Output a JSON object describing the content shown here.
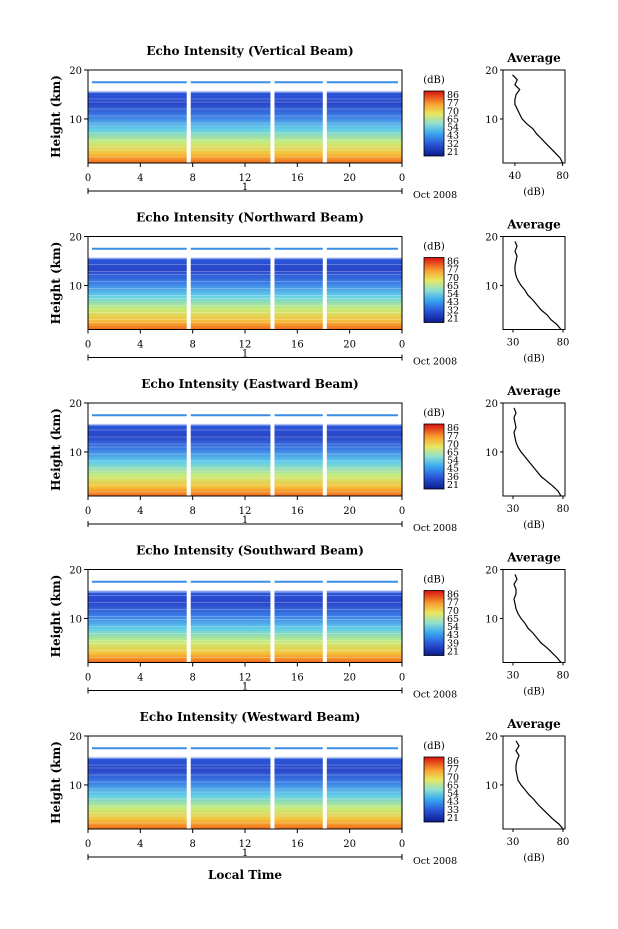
{
  "figure": {
    "xlabel": "Local Time"
  },
  "chart_data": [
    {
      "type": "heatmap",
      "title": "Echo Intensity (Vertical Beam)",
      "ylabel": "Height (km)",
      "x_ticks": [
        "0",
        "4",
        "8",
        "12",
        "16",
        "20",
        "0"
      ],
      "y_ticks": [
        "20",
        "10"
      ],
      "date_label": "Oct 2008",
      "date_marker": "1",
      "colorbar": {
        "unit": "(dB)",
        "labels": [
          "86",
          "77",
          "70",
          "65",
          "54",
          "43",
          "32",
          "21"
        ]
      },
      "average": {
        "title": "Average",
        "xlabel": "(dB)",
        "x_ticks": [
          "40",
          "80"
        ],
        "y_ticks": [
          "20",
          "10"
        ],
        "profile": [
          [
            80,
            1
          ],
          [
            78,
            2
          ],
          [
            74,
            3
          ],
          [
            70,
            4
          ],
          [
            66,
            5
          ],
          [
            62,
            6
          ],
          [
            58,
            7
          ],
          [
            55,
            8
          ],
          [
            50,
            9
          ],
          [
            46,
            10
          ],
          [
            44,
            11
          ],
          [
            42,
            12
          ],
          [
            40,
            13
          ],
          [
            40,
            14
          ],
          [
            41,
            15
          ],
          [
            44,
            16
          ],
          [
            40,
            17
          ],
          [
            42,
            18
          ],
          [
            38,
            19
          ]
        ]
      },
      "xlim": [
        0,
        24
      ],
      "ylim": [
        1,
        20
      ]
    },
    {
      "type": "heatmap",
      "title": "Echo Intensity (Northward Beam)",
      "ylabel": "Height (km)",
      "x_ticks": [
        "0",
        "4",
        "8",
        "12",
        "16",
        "20",
        "0"
      ],
      "y_ticks": [
        "20",
        "10"
      ],
      "date_label": "Oct 2008",
      "date_marker": "1",
      "colorbar": {
        "unit": "(dB)",
        "labels": [
          "86",
          "77",
          "70",
          "65",
          "54",
          "43",
          "32",
          "21"
        ]
      },
      "average": {
        "title": "Average",
        "xlabel": "(dB)",
        "x_ticks": [
          "30",
          "80"
        ],
        "y_ticks": [
          "20",
          "10"
        ],
        "profile": [
          [
            78,
            1
          ],
          [
            74,
            2
          ],
          [
            68,
            3
          ],
          [
            64,
            4
          ],
          [
            58,
            5
          ],
          [
            54,
            6
          ],
          [
            50,
            7
          ],
          [
            45,
            8
          ],
          [
            42,
            9
          ],
          [
            38,
            10
          ],
          [
            35,
            11
          ],
          [
            33,
            12
          ],
          [
            32,
            13
          ],
          [
            32,
            14
          ],
          [
            33,
            15
          ],
          [
            34,
            16
          ],
          [
            32,
            17
          ],
          [
            34,
            18
          ],
          [
            32,
            19
          ]
        ]
      },
      "xlim": [
        0,
        24
      ],
      "ylim": [
        1,
        20
      ]
    },
    {
      "type": "heatmap",
      "title": "Echo Intensity (Eastward Beam)",
      "ylabel": "Height (km)",
      "x_ticks": [
        "0",
        "4",
        "8",
        "12",
        "16",
        "20",
        "0"
      ],
      "y_ticks": [
        "20",
        "10"
      ],
      "date_label": "Oct 2008",
      "date_marker": "1",
      "colorbar": {
        "unit": "(dB)",
        "labels": [
          "86",
          "77",
          "70",
          "65",
          "54",
          "45",
          "36",
          "21"
        ]
      },
      "average": {
        "title": "Average",
        "xlabel": "(dB)",
        "x_ticks": [
          "30",
          "80"
        ],
        "y_ticks": [
          "20",
          "10"
        ],
        "profile": [
          [
            78,
            1
          ],
          [
            75,
            2
          ],
          [
            70,
            3
          ],
          [
            64,
            4
          ],
          [
            58,
            5
          ],
          [
            54,
            6
          ],
          [
            50,
            7
          ],
          [
            46,
            8
          ],
          [
            42,
            9
          ],
          [
            38,
            10
          ],
          [
            35,
            11
          ],
          [
            33,
            12
          ],
          [
            32,
            13
          ],
          [
            31,
            14
          ],
          [
            33,
            15
          ],
          [
            32,
            16
          ],
          [
            31,
            17
          ],
          [
            33,
            18
          ],
          [
            31,
            19
          ]
        ]
      },
      "xlim": [
        0,
        24
      ],
      "ylim": [
        1,
        20
      ]
    },
    {
      "type": "heatmap",
      "title": "Echo Intensity (Southward Beam)",
      "ylabel": "Height (km)",
      "x_ticks": [
        "0",
        "4",
        "8",
        "12",
        "16",
        "20",
        "0"
      ],
      "y_ticks": [
        "20",
        "10"
      ],
      "date_label": "Oct 2008",
      "date_marker": "1",
      "colorbar": {
        "unit": "(dB)",
        "labels": [
          "86",
          "77",
          "70",
          "65",
          "54",
          "43",
          "39",
          "21"
        ]
      },
      "average": {
        "title": "Average",
        "xlabel": "(dB)",
        "x_ticks": [
          "30",
          "80"
        ],
        "y_ticks": [
          "20",
          "10"
        ],
        "profile": [
          [
            78,
            1
          ],
          [
            74,
            2
          ],
          [
            69,
            3
          ],
          [
            64,
            4
          ],
          [
            58,
            5
          ],
          [
            54,
            6
          ],
          [
            50,
            7
          ],
          [
            45,
            8
          ],
          [
            42,
            9
          ],
          [
            38,
            10
          ],
          [
            35,
            11
          ],
          [
            33,
            12
          ],
          [
            32,
            13
          ],
          [
            31,
            14
          ],
          [
            33,
            15
          ],
          [
            33,
            16
          ],
          [
            31,
            17
          ],
          [
            34,
            18
          ],
          [
            32,
            19
          ]
        ]
      },
      "xlim": [
        0,
        24
      ],
      "ylim": [
        1,
        20
      ]
    },
    {
      "type": "heatmap",
      "title": "Echo Intensity (Westward Beam)",
      "ylabel": "Height (km)",
      "x_ticks": [
        "0",
        "4",
        "8",
        "12",
        "16",
        "20",
        "0"
      ],
      "y_ticks": [
        "20",
        "10"
      ],
      "date_label": "Oct 2008",
      "date_marker": "1",
      "colorbar": {
        "unit": "(dB)",
        "labels": [
          "86",
          "77",
          "70",
          "65",
          "54",
          "43",
          "33",
          "21"
        ]
      },
      "average": {
        "title": "Average",
        "xlabel": "(dB)",
        "x_ticks": [
          "30",
          "80"
        ],
        "y_ticks": [
          "20",
          "10"
        ],
        "profile": [
          [
            80,
            1
          ],
          [
            76,
            2
          ],
          [
            70,
            3
          ],
          [
            65,
            4
          ],
          [
            60,
            5
          ],
          [
            55,
            6
          ],
          [
            51,
            7
          ],
          [
            46,
            8
          ],
          [
            42,
            9
          ],
          [
            38,
            10
          ],
          [
            35,
            11
          ],
          [
            34,
            12
          ],
          [
            33,
            13
          ],
          [
            33,
            14
          ],
          [
            34,
            15
          ],
          [
            36,
            16
          ],
          [
            33,
            17
          ],
          [
            36,
            18
          ],
          [
            33,
            19
          ]
        ]
      },
      "xlim": [
        0,
        24
      ],
      "ylim": [
        1,
        20
      ]
    }
  ]
}
